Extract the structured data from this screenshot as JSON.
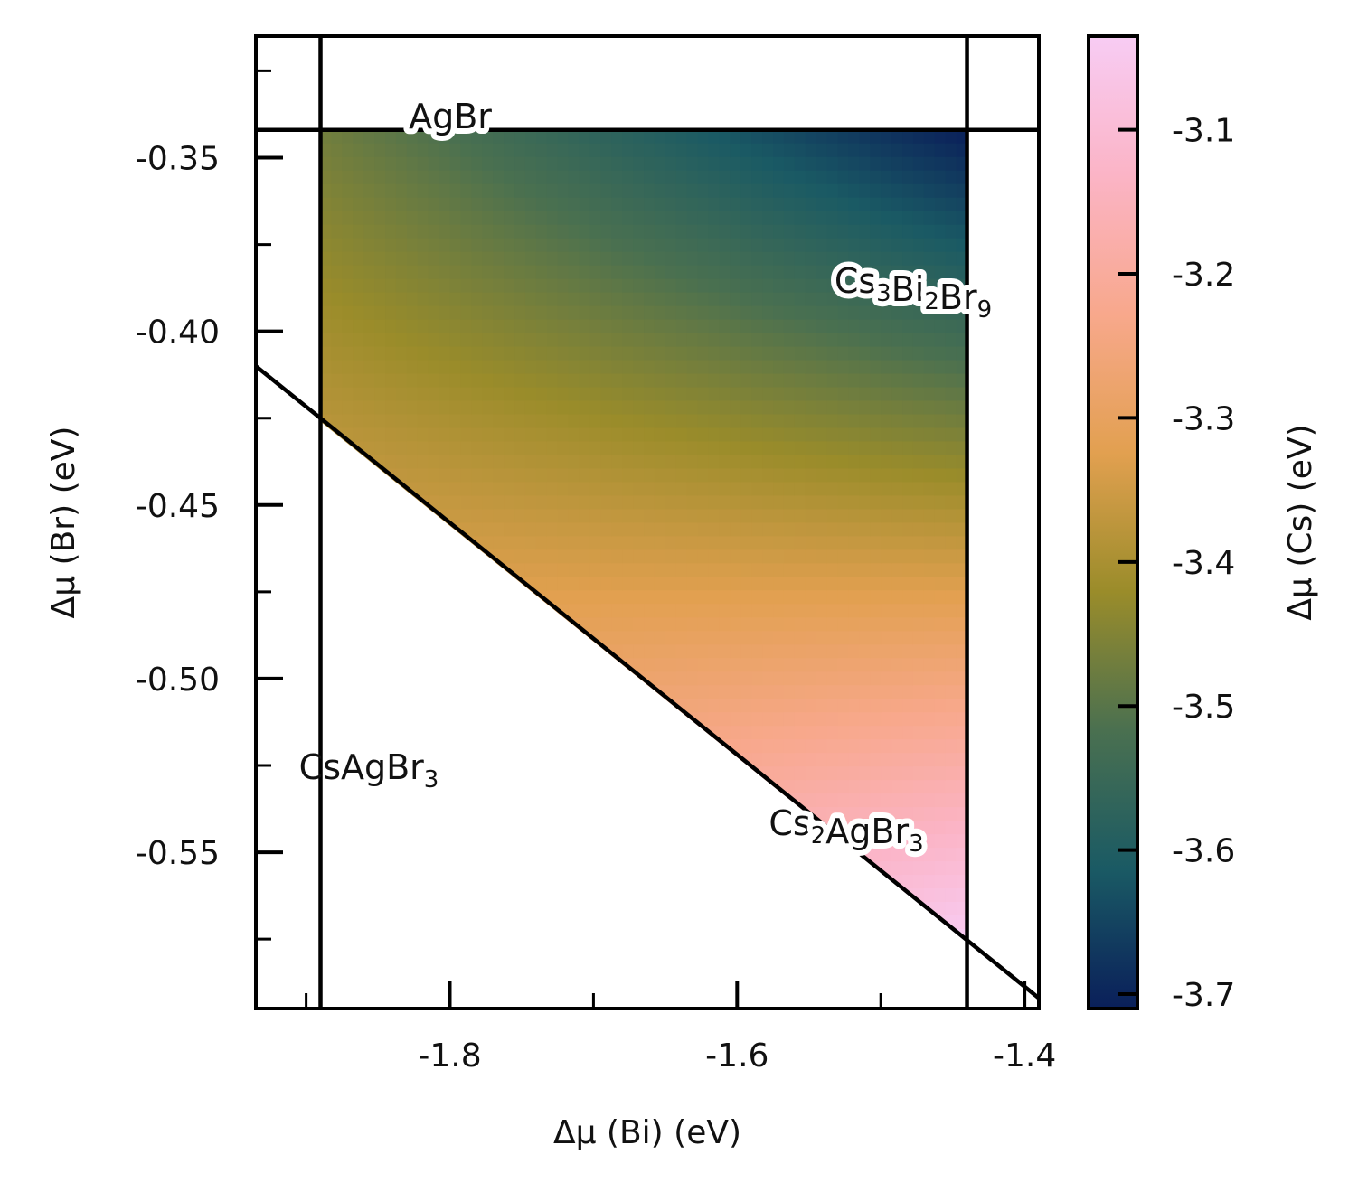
{
  "chart_data": {
    "type": "heatmap",
    "title": "",
    "xlabel": "Δμ (Bi) (eV)",
    "ylabel": "Δμ (Br) (eV)",
    "colorbar_label": "Δμ (Cs) (eV)",
    "xlim": [
      -1.935,
      -1.39
    ],
    "ylim": [
      -0.595,
      -0.315
    ],
    "x_ticks": [
      -1.8,
      -1.6,
      -1.4
    ],
    "x_tick_labels": [
      "-1.8",
      "-1.6",
      "-1.4"
    ],
    "x_minor_ticks": [
      -1.9,
      -1.7,
      -1.5
    ],
    "y_ticks": [
      -0.35,
      -0.4,
      -0.45,
      -0.5,
      -0.55
    ],
    "y_tick_labels": [
      "-0.35",
      "-0.40",
      "-0.45",
      "-0.50",
      "-0.55"
    ],
    "y_minor_ticks": [
      -0.325,
      -0.375,
      -0.425,
      -0.475,
      -0.525,
      -0.575
    ],
    "colorbar_range": [
      -3.71,
      -3.035
    ],
    "colorbar_ticks": [
      -3.1,
      -3.2,
      -3.3,
      -3.4,
      -3.5,
      -3.6,
      -3.7
    ],
    "colorbar_tick_labels": [
      "-3.1",
      "-3.2",
      "-3.3",
      "-3.4",
      "-3.5",
      "-3.6",
      "-3.7"
    ],
    "colormap": [
      "#0a1f5a",
      "#1a5a64",
      "#4a7050",
      "#9a8c2a",
      "#e2a050",
      "#f8a88c",
      "#fbb4c6",
      "#f8ccf4"
    ],
    "boundaries": [
      {
        "name": "AgBr",
        "type": "horizontal",
        "y": -0.342
      },
      {
        "name": "CsAgBr3",
        "type": "vertical",
        "x": -1.89
      },
      {
        "name": "Cs3Bi2Br9",
        "type": "vertical",
        "x": -1.44
      },
      {
        "name": "Cs2AgBr3",
        "type": "line",
        "points": [
          [
            -1.935,
            -0.41
          ],
          [
            -1.39,
            -0.592
          ]
        ]
      }
    ],
    "stable_region": [
      [
        -1.89,
        -0.342
      ],
      [
        -1.44,
        -0.342
      ],
      [
        -1.44,
        -0.576
      ],
      [
        -1.89,
        -0.426
      ]
    ],
    "corner_values": {
      "top_left": -3.47,
      "top_right": -3.71,
      "bottom_right": -3.035,
      "bottom_left": -3.22
    },
    "labels": [
      {
        "key": "agbr",
        "text": "AgBr"
      },
      {
        "key": "cs3bi2br9",
        "text": "Cs3Bi2Br9"
      },
      {
        "key": "csagbr3",
        "text": "CsAgBr3"
      },
      {
        "key": "cs2agbr3",
        "text": "Cs2AgBr3"
      }
    ]
  }
}
